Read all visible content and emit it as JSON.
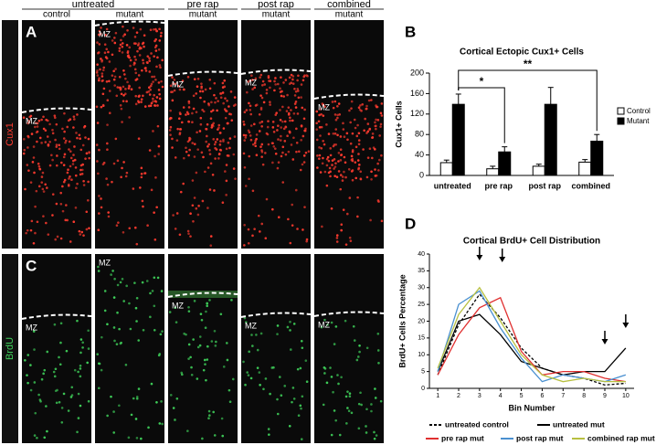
{
  "header": {
    "groups": [
      "untreated",
      "pre rap",
      "post rap",
      "combined"
    ],
    "columns": [
      "control",
      "mutant",
      "mutant",
      "mutant",
      "mutant"
    ]
  },
  "panel_letters": [
    "A",
    "B",
    "C",
    "D"
  ],
  "row_labels": [
    "Cux1",
    "BrdU"
  ],
  "mz_labels": [
    "MZ",
    "MZ",
    "MZ",
    "MZ",
    "MZ",
    "MZ",
    "MZ",
    "MZ",
    "MZ",
    "MZ"
  ],
  "chart_data": [
    {
      "type": "bar",
      "title": "Cortical Ectopic Cux1+ Cells",
      "y_label": "Cux1+ Cells",
      "categories": [
        "untreated",
        "pre rap",
        "post rap",
        "combined"
      ],
      "series": [
        {
          "name": "Control",
          "color": "#ffffff",
          "values": [
            25,
            13,
            18,
            26
          ],
          "errors": [
            5,
            5,
            4,
            5
          ]
        },
        {
          "name": "Mutant",
          "color": "#000000",
          "values": [
            139,
            46,
            139,
            67
          ],
          "errors": [
            20,
            10,
            33,
            13
          ]
        }
      ],
      "ylim": [
        0,
        200
      ],
      "yticks": [
        0,
        40,
        80,
        120,
        160,
        200
      ],
      "legend": "right",
      "annotations": [
        "*",
        "**"
      ]
    },
    {
      "type": "line",
      "title": "Cortical BrdU+ Cell Distribution",
      "x_label": "Bin Number",
      "y_label": "BrdU+ Cells Percentage",
      "x": [
        1,
        2,
        3,
        4,
        5,
        6,
        7,
        8,
        9,
        10
      ],
      "series": [
        {
          "name": "untreated control",
          "color": "#000000",
          "dashed": true,
          "values": [
            4,
            19,
            28,
            21,
            12,
            6,
            4,
            3,
            1,
            1.5
          ]
        },
        {
          "name": "untreated mut",
          "color": "#000000",
          "values": [
            5,
            20,
            22,
            16,
            8,
            6,
            4,
            5,
            5,
            12
          ]
        },
        {
          "name": "pre rap mut",
          "color": "#e03030",
          "values": [
            4,
            16,
            24,
            27,
            11,
            4,
            5,
            5,
            3,
            2
          ]
        },
        {
          "name": "post rap mut",
          "color": "#4a90d0",
          "values": [
            5,
            25,
            29,
            18,
            9,
            2,
            4,
            3,
            2,
            4
          ]
        },
        {
          "name": "combined rap mut",
          "color": "#b8c040",
          "values": [
            6,
            22,
            30,
            20,
            10,
            4,
            2,
            3,
            2,
            2
          ]
        }
      ],
      "xlim": [
        0.6,
        10.4
      ],
      "xticks": [
        1,
        2,
        3,
        4,
        5,
        6,
        7,
        8,
        9,
        10
      ],
      "ylim": [
        0,
        40
      ],
      "yticks": [
        0,
        5,
        10,
        15,
        20,
        25,
        30,
        35,
        40
      ],
      "legend": "bottom"
    }
  ]
}
